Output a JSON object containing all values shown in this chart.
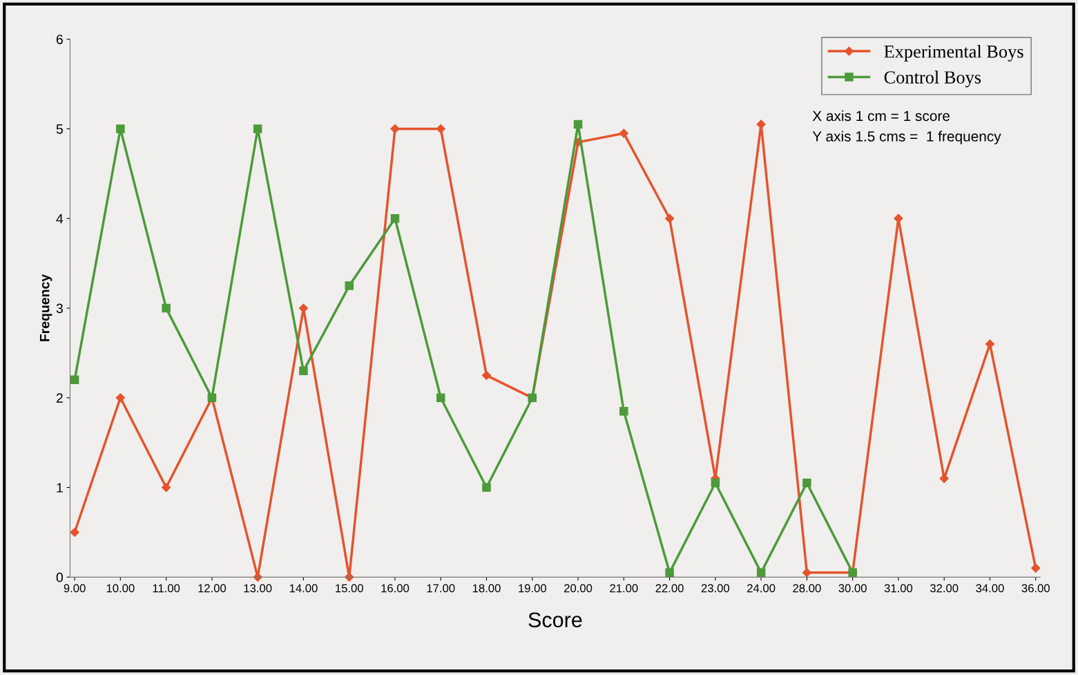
{
  "chart_data": {
    "type": "line",
    "xlabel": "Score",
    "ylabel": "Frequency",
    "categories": [
      "9.00",
      "10.00",
      "11.00",
      "12.00",
      "13.00",
      "14.00",
      "15.00",
      "16.00",
      "17.00",
      "18.00",
      "19.00",
      "20.00",
      "21.00",
      "22.00",
      "23.00",
      "24.00",
      "28.00",
      "30.00",
      "31.00",
      "32.00",
      "34.00",
      "36.00"
    ],
    "series": [
      {
        "name": "Experimental Boys",
        "color": "#e5532d",
        "marker": "diamond",
        "values": [
          0.5,
          2,
          1,
          2,
          0,
          3,
          0,
          5,
          5,
          2.25,
          2,
          4.85,
          4.95,
          4,
          1.1,
          5.05,
          0.05,
          0.05,
          4,
          1.1,
          2.6,
          0.1
        ]
      },
      {
        "name": "Control Boys",
        "color": "#4c9a3a",
        "marker": "square",
        "values": [
          2.2,
          5,
          3,
          2,
          5,
          2.3,
          3.25,
          4,
          2,
          1,
          2,
          5.05,
          1.85,
          0.05,
          1.05,
          0.05,
          1.05,
          0.05,
          null,
          null,
          null,
          null
        ]
      }
    ],
    "ylim": [
      0,
      6
    ],
    "yticks": [
      0,
      1,
      2,
      3,
      4,
      5,
      6
    ],
    "grid": false,
    "legend": "top right",
    "line_style": "solid",
    "annotations": [
      "X axis 1 cm = 1 score",
      "Y axis 1.5 cms =  1 frequency"
    ]
  }
}
